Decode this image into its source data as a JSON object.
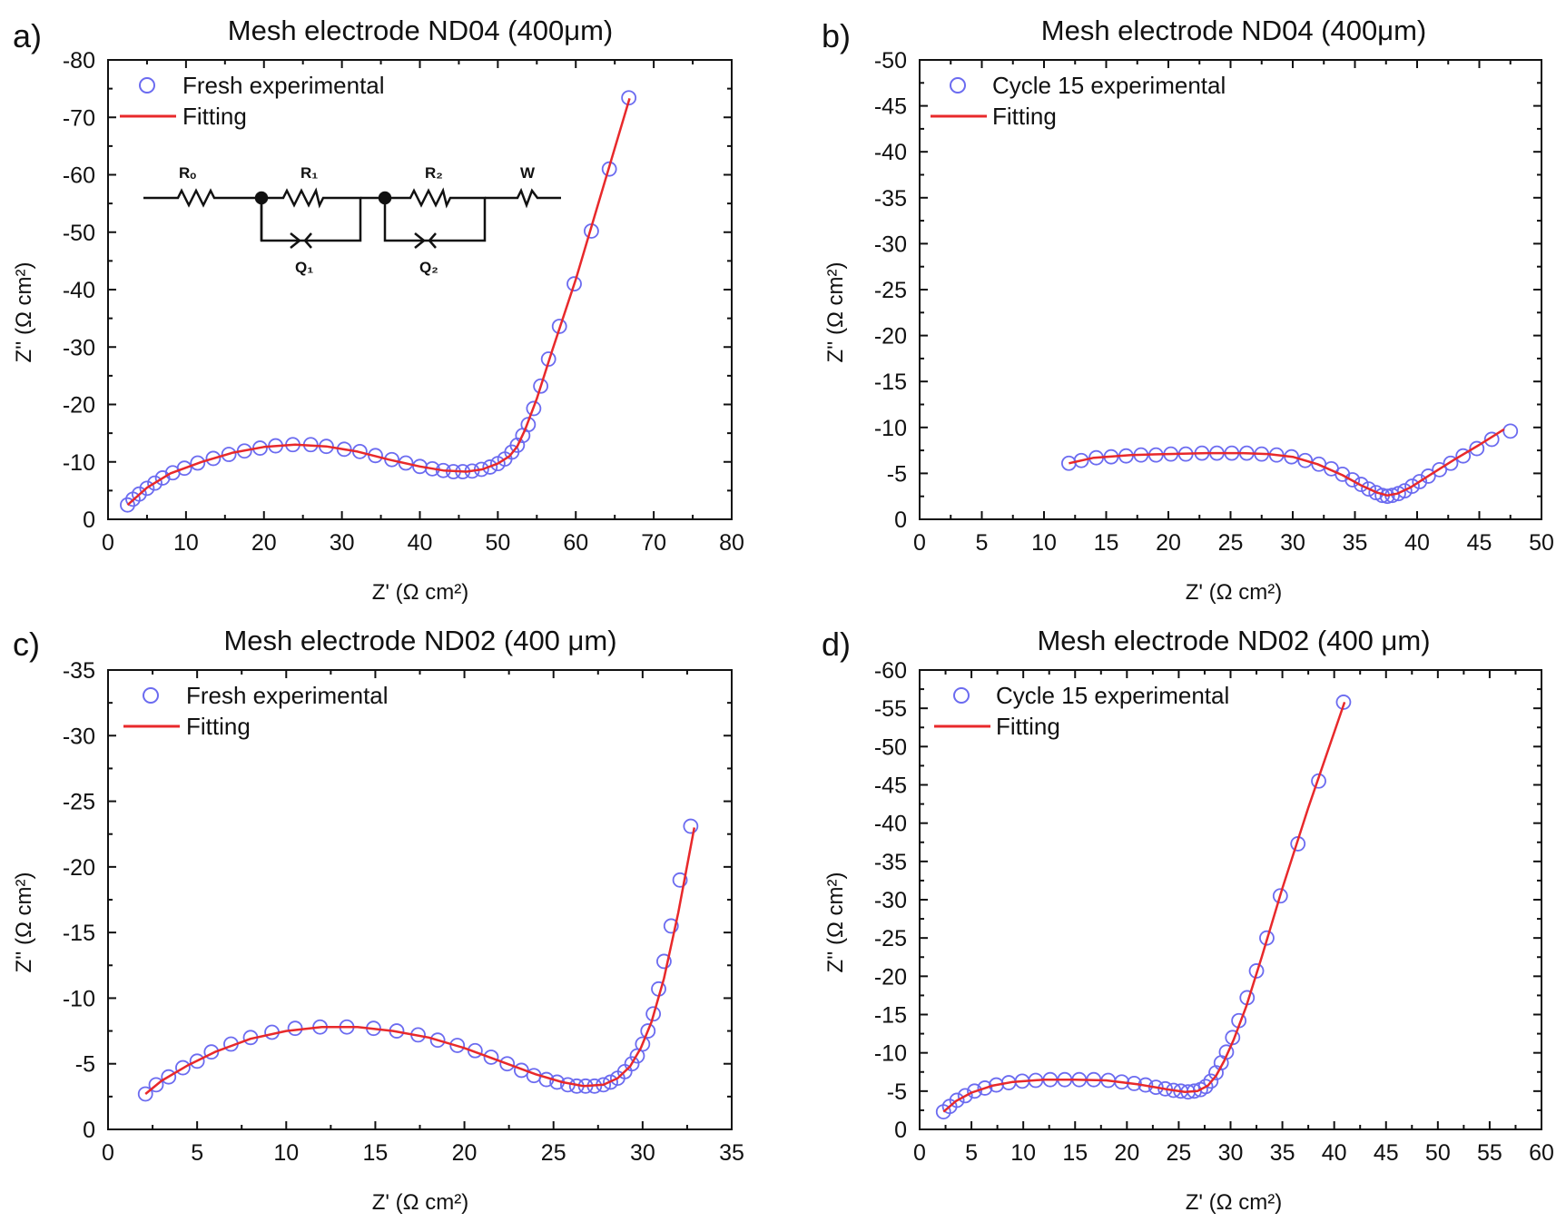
{
  "colors": {
    "marker": "#6b6bf0",
    "fit": "#e8292b",
    "axis": "#111111"
  },
  "chart_data": [
    {
      "type": "scatter",
      "panel_label": "a)",
      "title": "Mesh electrode ND04 (400μm)",
      "xlabel": "Z' (Ω cm²)",
      "ylabel": "Z'' (Ω cm²)",
      "xlim": [
        0,
        80
      ],
      "ylim": [
        0,
        -80
      ],
      "xticks": [
        0,
        10,
        20,
        30,
        40,
        50,
        60,
        70,
        80
      ],
      "yticks": [
        0,
        -10,
        -20,
        -30,
        -40,
        -50,
        -60,
        -70,
        -80
      ],
      "legend_position": "top-left",
      "series": [
        {
          "name": "Fresh experimental",
          "style": "open-circle",
          "x": [
            2.5,
            3.2,
            4.0,
            5.0,
            6.0,
            7.0,
            8.3,
            9.8,
            11.5,
            13.5,
            15.5,
            17.5,
            19.5,
            21.5,
            23.7,
            26.0,
            28.0,
            30.3,
            32.3,
            34.3,
            36.4,
            38.2,
            40.0,
            41.6,
            43.0,
            44.3,
            45.5,
            46.7,
            47.9,
            49.0,
            50.0,
            50.9,
            51.8,
            52.5,
            53.2,
            53.9,
            54.6,
            55.5,
            56.5,
            57.9,
            59.8,
            62.0,
            64.3,
            66.8
          ],
          "y": [
            -2.5,
            -3.5,
            -4.4,
            -5.4,
            -6.3,
            -7.2,
            -8.1,
            -8.9,
            -9.8,
            -10.6,
            -11.3,
            -11.9,
            -12.4,
            -12.8,
            -13.0,
            -13.0,
            -12.7,
            -12.2,
            -11.8,
            -11.1,
            -10.4,
            -9.8,
            -9.2,
            -8.8,
            -8.5,
            -8.3,
            -8.3,
            -8.4,
            -8.7,
            -9.1,
            -9.7,
            -10.5,
            -11.7,
            -12.9,
            -14.6,
            -16.5,
            -19.3,
            -23.2,
            -27.9,
            -33.6,
            -41.0,
            -50.2,
            -61.0,
            -73.4
          ]
        },
        {
          "name": "Fitting",
          "style": "line",
          "x": [
            2.5,
            5,
            8,
            12,
            16,
            20,
            24,
            28,
            32,
            36,
            40,
            43,
            46,
            48,
            50,
            51.5,
            52.5,
            53.5,
            55,
            57,
            60,
            63,
            66.9
          ],
          "y": [
            -2.5,
            -5.5,
            -8.0,
            -10.0,
            -11.6,
            -12.6,
            -13.0,
            -12.7,
            -11.8,
            -10.4,
            -9.2,
            -8.5,
            -8.3,
            -8.7,
            -9.7,
            -11.0,
            -12.7,
            -15.6,
            -21.0,
            -29.5,
            -41.8,
            -55.5,
            -73.3
          ]
        }
      ]
    },
    {
      "type": "scatter",
      "panel_label": "b)",
      "title": "Mesh electrode ND04 (400μm)",
      "xlabel": "Z' (Ω cm²)",
      "ylabel": "Z'' (Ω cm²)",
      "xlim": [
        0,
        50
      ],
      "ylim": [
        0,
        -50
      ],
      "xticks": [
        0,
        5,
        10,
        15,
        20,
        25,
        30,
        35,
        40,
        45,
        50
      ],
      "yticks": [
        0,
        -5,
        -10,
        -15,
        -20,
        -25,
        -30,
        -35,
        -40,
        -45,
        -50
      ],
      "legend_position": "top-left",
      "series": [
        {
          "name": "Cycle 15 experimental",
          "style": "open-circle",
          "x": [
            12.0,
            13.0,
            14.2,
            15.4,
            16.6,
            17.8,
            19.0,
            20.2,
            21.4,
            22.7,
            23.9,
            25.1,
            26.3,
            27.5,
            28.7,
            29.9,
            31.0,
            32.1,
            33.1,
            34.0,
            34.8,
            35.5,
            36.1,
            36.7,
            37.2,
            37.6,
            38.0,
            38.5,
            39.0,
            39.6,
            40.2,
            40.9,
            41.8,
            42.7,
            43.7,
            44.8,
            46.0,
            47.5
          ],
          "y": [
            -6.1,
            -6.4,
            -6.7,
            -6.8,
            -6.9,
            -7.0,
            -7.0,
            -7.1,
            -7.1,
            -7.2,
            -7.2,
            -7.2,
            -7.2,
            -7.1,
            -7.0,
            -6.8,
            -6.4,
            -6.0,
            -5.5,
            -4.9,
            -4.3,
            -3.8,
            -3.3,
            -2.9,
            -2.6,
            -2.5,
            -2.6,
            -2.8,
            -3.1,
            -3.6,
            -4.1,
            -4.7,
            -5.4,
            -6.1,
            -6.9,
            -7.7,
            -8.7,
            -9.6
          ]
        },
        {
          "name": "Fitting",
          "style": "line",
          "x": [
            12.0,
            14,
            17,
            20,
            23,
            26,
            28,
            30,
            32,
            34,
            35.5,
            36.8,
            37.6,
            38.4,
            39.5,
            41,
            43,
            45,
            47.0
          ],
          "y": [
            -6.1,
            -6.7,
            -7.0,
            -7.1,
            -7.2,
            -7.2,
            -7.1,
            -6.8,
            -6.0,
            -4.8,
            -3.7,
            -2.9,
            -2.6,
            -2.8,
            -3.5,
            -4.8,
            -6.5,
            -8.1,
            -9.8
          ]
        }
      ]
    },
    {
      "type": "scatter",
      "panel_label": "c)",
      "title": "Mesh electrode ND02 (400 μm)",
      "xlabel": "Z' (Ω cm²)",
      "ylabel": "Z'' (Ω cm²)",
      "xlim": [
        0,
        35
      ],
      "ylim": [
        0,
        -35
      ],
      "xticks": [
        0,
        5,
        10,
        15,
        20,
        25,
        30,
        35
      ],
      "yticks": [
        0,
        -5,
        -10,
        -15,
        -20,
        -25,
        -30,
        -35
      ],
      "legend_position": "top-left",
      "series": [
        {
          "name": "Fresh experimental",
          "style": "open-circle",
          "x": [
            2.1,
            2.7,
            3.4,
            4.2,
            5.0,
            5.8,
            6.9,
            8.0,
            9.2,
            10.5,
            11.9,
            13.4,
            14.9,
            16.2,
            17.4,
            18.5,
            19.6,
            20.6,
            21.5,
            22.4,
            23.2,
            23.9,
            24.6,
            25.2,
            25.8,
            26.3,
            26.8,
            27.3,
            27.8,
            28.2,
            28.6,
            29.0,
            29.4,
            29.7,
            30.0,
            30.3,
            30.6,
            30.9,
            31.2,
            31.6,
            32.1,
            32.7
          ],
          "y": [
            -2.7,
            -3.4,
            -4.0,
            -4.7,
            -5.2,
            -5.9,
            -6.5,
            -7.0,
            -7.4,
            -7.7,
            -7.8,
            -7.8,
            -7.7,
            -7.5,
            -7.2,
            -6.8,
            -6.4,
            -6.0,
            -5.5,
            -5.0,
            -4.5,
            -4.1,
            -3.8,
            -3.6,
            -3.4,
            -3.3,
            -3.3,
            -3.3,
            -3.4,
            -3.6,
            -3.9,
            -4.4,
            -5.0,
            -5.6,
            -6.5,
            -7.5,
            -8.8,
            -10.7,
            -12.8,
            -15.5,
            -19.0,
            -23.1
          ]
        },
        {
          "name": "Fitting",
          "style": "line",
          "x": [
            2.1,
            3,
            4.5,
            6,
            8,
            10,
            12,
            14,
            16,
            18,
            20,
            22,
            24,
            25.5,
            26.7,
            27.8,
            28.6,
            29.3,
            29.9,
            30.5,
            31.2,
            32.0,
            32.9
          ],
          "y": [
            -2.7,
            -3.7,
            -4.9,
            -5.9,
            -6.9,
            -7.5,
            -7.8,
            -7.8,
            -7.5,
            -7.0,
            -6.2,
            -5.2,
            -4.2,
            -3.6,
            -3.3,
            -3.4,
            -3.9,
            -4.8,
            -6.2,
            -8.2,
            -11.5,
            -16.5,
            -23.0
          ]
        }
      ]
    },
    {
      "type": "scatter",
      "panel_label": "d)",
      "title": "Mesh electrode ND02 (400 μm)",
      "xlabel": "Z' (Ω cm²)",
      "ylabel": "Z'' (Ω cm²)",
      "xlim": [
        0,
        60
      ],
      "ylim": [
        0,
        -60
      ],
      "xticks": [
        0,
        5,
        10,
        15,
        20,
        25,
        30,
        35,
        40,
        45,
        50,
        55,
        60
      ],
      "yticks": [
        0,
        -5,
        -10,
        -15,
        -20,
        -25,
        -30,
        -35,
        -40,
        -45,
        -50,
        -55,
        -60
      ],
      "legend_position": "top-left",
      "series": [
        {
          "name": "Cycle 15 experimental",
          "style": "open-circle",
          "x": [
            2.3,
            2.9,
            3.6,
            4.4,
            5.3,
            6.3,
            7.4,
            8.6,
            9.9,
            11.2,
            12.6,
            14.0,
            15.4,
            16.8,
            18.2,
            19.5,
            20.7,
            21.8,
            22.8,
            23.7,
            24.5,
            25.2,
            25.9,
            26.5,
            27.1,
            27.6,
            28.1,
            28.6,
            29.1,
            29.6,
            30.2,
            30.8,
            31.6,
            32.5,
            33.5,
            34.8,
            36.5,
            38.5,
            40.9
          ],
          "y": [
            -2.3,
            -3.0,
            -3.8,
            -4.4,
            -5.0,
            -5.4,
            -5.8,
            -6.1,
            -6.3,
            -6.4,
            -6.5,
            -6.5,
            -6.5,
            -6.5,
            -6.4,
            -6.2,
            -6.0,
            -5.8,
            -5.5,
            -5.3,
            -5.1,
            -5.0,
            -4.9,
            -5.0,
            -5.2,
            -5.6,
            -6.3,
            -7.4,
            -8.7,
            -10.1,
            -12.0,
            -14.2,
            -17.2,
            -20.7,
            -25.0,
            -30.5,
            -37.3,
            -45.5,
            -55.8
          ]
        },
        {
          "name": "Fitting",
          "style": "line",
          "x": [
            2.3,
            3.5,
            5,
            7,
            9,
            12,
            15,
            18,
            21,
            24,
            25.6,
            26.8,
            27.8,
            28.6,
            29.4,
            30.3,
            31.5,
            33,
            35,
            37.5,
            41.0
          ],
          "y": [
            -2.3,
            -3.7,
            -4.8,
            -5.7,
            -6.2,
            -6.5,
            -6.5,
            -6.4,
            -5.9,
            -5.2,
            -4.9,
            -5.0,
            -5.7,
            -7.0,
            -9.0,
            -11.7,
            -16.0,
            -22.5,
            -31.5,
            -42.0,
            -55.8
          ]
        }
      ]
    }
  ],
  "inset_circuit": {
    "labels": [
      "Rₒ",
      "R₁",
      "R₂",
      "W",
      "Q₁",
      "Q₂"
    ]
  }
}
